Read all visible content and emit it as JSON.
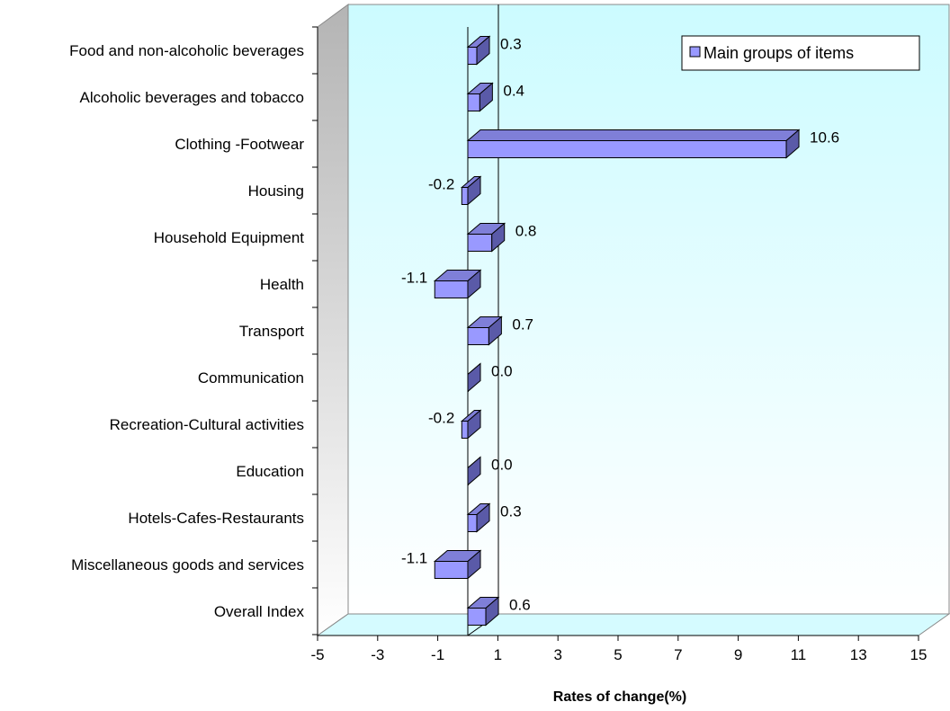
{
  "chart_data": {
    "type": "bar",
    "orientation": "horizontal",
    "three_d": true,
    "categories": [
      "Food and non-alcoholic beverages",
      "Alcoholic beverages and tobacco",
      "Clothing -Footwear",
      "Housing",
      "Household Equipment",
      "Health",
      "Transport",
      "Communication",
      "Recreation-Cultural activities",
      "Education",
      "Hotels-Cafes-Restaurants",
      "Miscellaneous goods and services",
      "Overall Index"
    ],
    "series": [
      {
        "name": "Main groups of items",
        "values": [
          0.3,
          0.4,
          10.6,
          -0.2,
          0.8,
          -1.1,
          0.7,
          0.0,
          -0.2,
          0.0,
          0.3,
          -1.1,
          0.6
        ],
        "labels": [
          "0.3",
          "0.4",
          "10.6",
          "-0.2",
          "0.8",
          "-1.1",
          "0.7",
          "0.0",
          "-0.2",
          "0.0",
          "0.3",
          "-1.1",
          "0.6"
        ]
      }
    ],
    "xlabel": "Rates of change(%)",
    "ylabel": "",
    "xlim": [
      -5,
      15
    ],
    "xticks": [
      "-5",
      "-3",
      "-1",
      "1",
      "3",
      "5",
      "7",
      "9",
      "11",
      "13",
      "15"
    ],
    "legend_position": "top-right",
    "colors": {
      "bar_front": "#9999ff",
      "bar_top": "#7f7fd8",
      "bar_side": "#5a5aa8",
      "back_wall_top": "#ccfbff",
      "back_wall_bottom": "#ffffff",
      "floor": "#d5fbff",
      "side_wall_top": "#bbbbbb",
      "side_wall_bottom": "#ffffff"
    }
  }
}
